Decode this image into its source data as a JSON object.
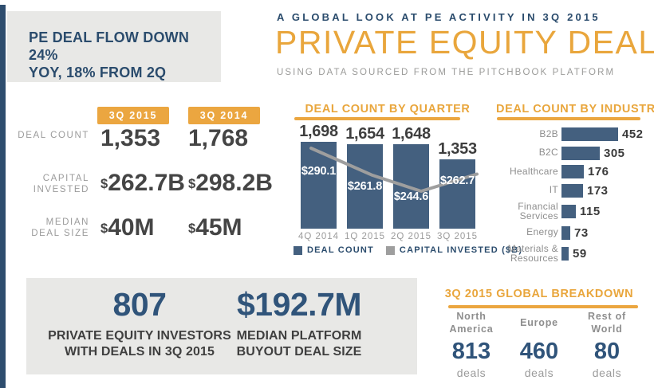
{
  "callout": {
    "line1": "PE DEAL FLOW DOWN 24%",
    "line2": "YOY, 18% FROM 2Q"
  },
  "header": {
    "kicker": "A GLOBAL LOOK AT PE ACTIVITY IN 3Q 2015",
    "title": "PRIVATE EQUITY DEALS",
    "subtitle": "USING DATA SOURCED FROM THE PITCHBOOK PLATFORM"
  },
  "comparison_table": {
    "columns": [
      "3Q 2015",
      "3Q 2014"
    ],
    "rows": [
      {
        "label": "DEAL COUNT",
        "values": [
          "1,353",
          "1,768"
        ]
      },
      {
        "label": "CAPITAL INVESTED",
        "values": [
          "$262.7B",
          "$298.2B"
        ]
      },
      {
        "label": "MEDIAN DEAL SIZE",
        "values": [
          "$40M",
          "$45M"
        ]
      }
    ]
  },
  "chart_data": [
    {
      "type": "bar",
      "title": "DEAL COUNT BY QUARTER",
      "categories": [
        "4Q 2014",
        "1Q 2015",
        "2Q 2015",
        "3Q 2015"
      ],
      "series": [
        {
          "name": "DEAL COUNT",
          "type": "bar",
          "values": [
            1698,
            1654,
            1648,
            1353
          ],
          "labels": [
            "1,698",
            "1,654",
            "1,648",
            "1,353"
          ],
          "color": "#44607f"
        },
        {
          "name": "CAPITAL INVESTED ($B)",
          "type": "line",
          "values": [
            290.1,
            261.8,
            244.6,
            262.7
          ],
          "labels": [
            "$290.1",
            "$261.8",
            "$244.6",
            "$262.7"
          ],
          "color": "#9e9e9e"
        }
      ],
      "legend": [
        "DEAL COUNT",
        "CAPITAL INVESTED ($B)"
      ],
      "legend_position": "bottom",
      "grid": false,
      "ylim": [
        0,
        1698
      ]
    },
    {
      "type": "bar",
      "orientation": "horizontal",
      "title": "DEAL COUNT BY INDUSTRY",
      "categories": [
        "B2B",
        "B2C",
        "Healthcare",
        "IT",
        "Financial Services",
        "Energy",
        "Materials & Resources"
      ],
      "values": [
        452,
        305,
        176,
        173,
        115,
        73,
        59
      ],
      "color": "#44607f",
      "grid": false,
      "xlim": [
        0,
        452
      ]
    }
  ],
  "highlights": [
    {
      "value": "807",
      "caption_line1": "PRIVATE EQUITY INVESTORS",
      "caption_line2": "WITH DEALS IN 3Q 2015"
    },
    {
      "value": "$192.7M",
      "caption_line1": "MEDIAN PLATFORM",
      "caption_line2": "BUYOUT DEAL SIZE"
    }
  ],
  "global_breakdown": {
    "title": "3Q 2015 GLOBAL BREAKDOWN",
    "regions": [
      {
        "name": "North America",
        "value": "813",
        "unit": "deals"
      },
      {
        "name": "Europe",
        "value": "460",
        "unit": "deals"
      },
      {
        "name": "Rest of World",
        "value": "80",
        "unit": "deals"
      }
    ]
  },
  "colors": {
    "accent_orange": "#eba640",
    "title_orange": "#e9a63c",
    "navy_heading": "#2b4c6d",
    "navy_stat": "#30547a",
    "bar_navy": "#44607f",
    "line_gray": "#9e9e9e",
    "box_gray": "#e8e8e6",
    "label_gray": "#9b9b9b",
    "value_dark": "#454545"
  }
}
